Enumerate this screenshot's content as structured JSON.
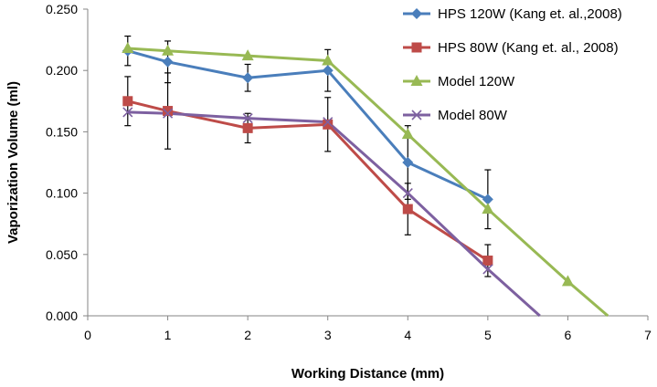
{
  "chart_data": {
    "type": "line",
    "title": "",
    "xlabel": "Working Distance (mm)",
    "ylabel": "Vaporization Volume (ml)",
    "xlim": [
      0,
      7
    ],
    "ylim": [
      0,
      0.25
    ],
    "x_ticks": [
      "0",
      "1",
      "2",
      "3",
      "4",
      "5",
      "6",
      "7"
    ],
    "y_ticks": [
      "0.000",
      "0.050",
      "0.100",
      "0.150",
      "0.200",
      "0.250"
    ],
    "grid": false,
    "legend_position": "top-right",
    "series": [
      {
        "name": "HPS 120W (Kang et. al.,2008)",
        "color": "#4a7ebb",
        "marker": "diamond",
        "x": [
          0.5,
          1,
          2,
          3,
          4,
          5
        ],
        "y": [
          0.216,
          0.207,
          0.194,
          0.2,
          0.125,
          0.095
        ],
        "error": [
          0.012,
          0.017,
          0.011,
          0.017,
          0.03,
          0.024
        ]
      },
      {
        "name": "HPS 80W (Kang et. al., 2008)",
        "color": "#be4b48",
        "marker": "square",
        "x": [
          0.5,
          1,
          2,
          3,
          4,
          5
        ],
        "y": [
          0.175,
          0.167,
          0.153,
          0.156,
          0.087,
          0.045
        ],
        "error": [
          0.02,
          0.031,
          0.012,
          0.022,
          0.021,
          0.013
        ]
      },
      {
        "name": "Model 120W",
        "color": "#98b954",
        "marker": "triangle",
        "x": [
          0.5,
          1,
          2,
          3,
          4,
          5,
          6,
          6.5
        ],
        "y": [
          0.218,
          0.216,
          0.212,
          0.208,
          0.148,
          0.087,
          0.028,
          0.0
        ],
        "error": []
      },
      {
        "name": "Model 80W",
        "color": "#7d60a0",
        "marker": "x",
        "x": [
          0.5,
          1,
          2,
          3,
          4,
          5,
          5.65
        ],
        "y": [
          0.166,
          0.165,
          0.161,
          0.158,
          0.1,
          0.038,
          0.0
        ],
        "error": []
      }
    ]
  }
}
